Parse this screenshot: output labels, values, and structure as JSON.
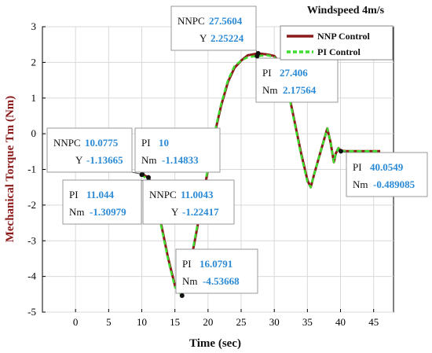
{
  "chart_data": {
    "type": "line",
    "title": "Windspeed 4m/s",
    "xlabel": "Time (sec)",
    "ylabel": "Mechanical Torque Tm (Nm)",
    "xlim": [
      -5,
      48
    ],
    "ylim": [
      -5,
      3
    ],
    "xticks": [
      0,
      5,
      10,
      15,
      20,
      25,
      30,
      35,
      40,
      45
    ],
    "yticks": [
      -5,
      -4,
      -3,
      -2,
      -1,
      0,
      1,
      2,
      3
    ],
    "grid": true,
    "legend_position": "top-right",
    "series": [
      {
        "name": "NNP Control",
        "color": "#8b1a1a",
        "style": "solid",
        "x": [
          10,
          10.0775,
          11.0043,
          12,
          13,
          14,
          15,
          16.0791,
          17,
          18,
          19,
          20,
          21,
          22,
          23,
          24,
          25,
          26,
          27.5604,
          29,
          30,
          31,
          32,
          33,
          34,
          35,
          35.5,
          36,
          37,
          38,
          38.5,
          39,
          39.3,
          39.7,
          40,
          41,
          42,
          43,
          44,
          45,
          46
        ],
        "y": [
          -1.12,
          -1.13665,
          -1.22417,
          -1.75,
          -2.6,
          -3.5,
          -4.25,
          -4.53668,
          -3.95,
          -3.0,
          -2.0,
          -1.0,
          0.0,
          0.8,
          1.45,
          1.85,
          2.05,
          2.2,
          2.25224,
          2.22,
          2.18,
          1.95,
          1.3,
          0.4,
          -0.5,
          -1.3,
          -1.5,
          -1.15,
          -0.5,
          0.15,
          -0.25,
          -0.8,
          -0.55,
          -0.4,
          -0.48,
          -0.489085,
          -0.489085,
          -0.489085,
          -0.489085,
          -0.489085,
          -0.489085
        ]
      },
      {
        "name": "PI Control",
        "color": "#3ddc2e",
        "style": "dashed",
        "x": [
          10,
          11.044,
          12,
          13,
          14,
          15,
          16.0791,
          17,
          18,
          19,
          20,
          21,
          22,
          23,
          24,
          25,
          26,
          27.406,
          29,
          30,
          31,
          32,
          33,
          34,
          35,
          35.5,
          36,
          37,
          38,
          38.5,
          39,
          39.3,
          39.7,
          40.0549,
          41,
          42,
          43,
          44,
          45,
          46
        ],
        "y": [
          -1.14833,
          -1.30979,
          -1.8,
          -2.65,
          -3.55,
          -4.3,
          -4.53668,
          -3.9,
          -2.95,
          -1.95,
          -0.95,
          0.05,
          0.85,
          1.5,
          1.9,
          2.05,
          2.15,
          2.17564,
          2.2,
          2.15,
          1.9,
          1.25,
          0.35,
          -0.55,
          -1.35,
          -1.5,
          -1.15,
          -0.5,
          0.15,
          -0.25,
          -0.8,
          -0.55,
          -0.4,
          -0.489085,
          -0.489085,
          -0.489085,
          -0.489085,
          -0.489085,
          -0.489085,
          -0.489085
        ]
      }
    ],
    "datatips": [
      {
        "x": 10.0775,
        "y": -1.13665,
        "line1_key": "NNPC",
        "line1_val": "10.0775",
        "line2_key": "Y",
        "line2_val": "-1.13665"
      },
      {
        "x": 10.0,
        "y": -1.14833,
        "line1_key": "PI",
        "line1_val": "10",
        "line2_key": "Nm",
        "line2_val": "-1.14833"
      },
      {
        "x": 11.044,
        "y": -1.30979,
        "line1_key": "PI",
        "line1_val": "11.044",
        "line2_key": "Nm",
        "line2_val": "-1.30979"
      },
      {
        "x": 11.0043,
        "y": -1.22417,
        "line1_key": "NNPC",
        "line1_val": "11.0043",
        "line2_key": "Y",
        "line2_val": "-1.22417"
      },
      {
        "x": 27.5604,
        "y": 2.25224,
        "line1_key": "NNPC",
        "line1_val": "27.5604",
        "line2_key": "Y",
        "line2_val": "2.25224"
      },
      {
        "x": 27.406,
        "y": 2.17564,
        "line1_key": "PI",
        "line1_val": "27.406",
        "line2_key": "Nm",
        "line2_val": "2.17564"
      },
      {
        "x": 16.0791,
        "y": -4.53668,
        "line1_key": "PI",
        "line1_val": "16.0791",
        "line2_key": "Nm",
        "line2_val": "-4.53668"
      },
      {
        "x": 40.0549,
        "y": -0.489085,
        "line1_key": "PI",
        "line1_val": "40.0549",
        "line2_key": "Nm",
        "line2_val": "-0.489085"
      }
    ]
  }
}
